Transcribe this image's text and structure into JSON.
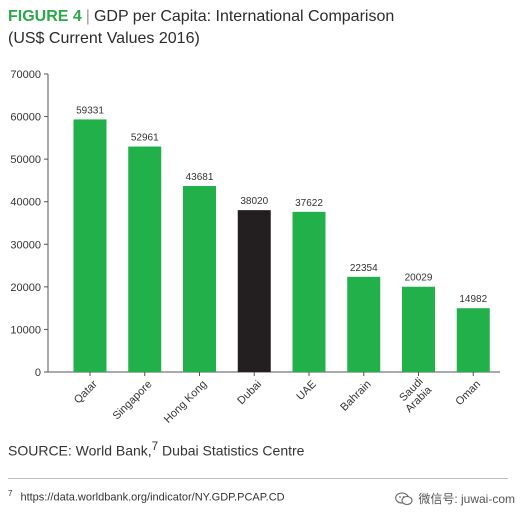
{
  "header": {
    "figure_label": "FIGURE 4",
    "separator": "|",
    "title": "GDP per Capita: International Comparison",
    "subtitle": "(US$ Current Values 2016)"
  },
  "chart_data": {
    "type": "bar",
    "title": "GDP per Capita: International Comparison",
    "subtitle": "(US$ Current Values 2016)",
    "categories": [
      "Qatar",
      "Singapore",
      "Hong Kong",
      "Dubai",
      "UAE",
      "Bahrain",
      "Saudi Arabia",
      "Oman"
    ],
    "category_lines": [
      [
        "Qatar"
      ],
      [
        "Singapore"
      ],
      [
        "Hong Kong"
      ],
      [
        "Dubai"
      ],
      [
        "UAE"
      ],
      [
        "Bahrain"
      ],
      [
        "Saudi",
        "Arabia"
      ],
      [
        "Oman"
      ]
    ],
    "values": [
      59331,
      52961,
      43681,
      38020,
      37622,
      22354,
      20029,
      14982
    ],
    "highlight_index": 3,
    "ylim": [
      0,
      70000
    ],
    "yticks": [
      0,
      10000,
      20000,
      30000,
      40000,
      50000,
      60000,
      70000
    ],
    "xlabel": "",
    "ylabel": "",
    "grid": false,
    "colors": {
      "bar": "#22b04b",
      "highlight": "#231f20",
      "axis": "#555555",
      "title_accent": "#2ba84a"
    }
  },
  "source": {
    "label": "SOURCE: World Bank,",
    "ref": "7",
    "rest": " Dubai Statistics Centre"
  },
  "footnote": {
    "number": "7",
    "text": "https://data.worldbank.org/indicator/NY.GDP.PCAP.CD"
  },
  "watermark": {
    "icon": "wechat-icon",
    "text": "微信号: juwai-com"
  }
}
